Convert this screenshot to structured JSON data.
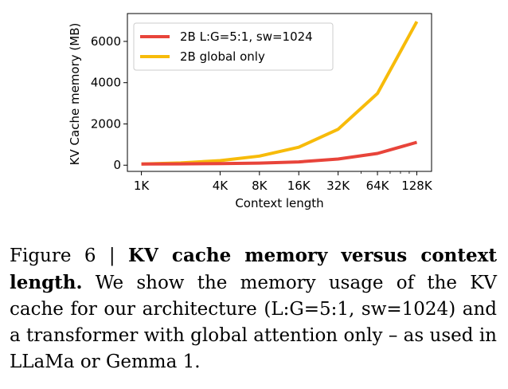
{
  "chart_data": {
    "type": "line",
    "title": "",
    "xlabel": "Context length",
    "ylabel": "KV Cache memory (MB)",
    "x_scale": "log2",
    "x": [
      1024,
      2048,
      4096,
      8192,
      16384,
      32768,
      65536,
      131072
    ],
    "xticks": [
      {
        "value": 1024,
        "label": "1K"
      },
      {
        "value": 4096,
        "label": "4K"
      },
      {
        "value": 8192,
        "label": "8K"
      },
      {
        "value": 16384,
        "label": "16K"
      },
      {
        "value": 32768,
        "label": "32K"
      },
      {
        "value": 65536,
        "label": "64K"
      },
      {
        "value": 131072,
        "label": "128K"
      }
    ],
    "minor_ticks": [
      49152,
      81920,
      98304,
      114688
    ],
    "yticks": [
      0,
      2000,
      4000,
      6000
    ],
    "ylim": [
      -300,
      7350
    ],
    "xlim": [
      800,
      170000
    ],
    "legend_position": "upper-left",
    "series": [
      {
        "name": "2B L:G=5:1, sw=1024",
        "color": "#e8443a",
        "values": [
          55,
          62,
          75,
          100,
          160,
          300,
          570,
          1110
        ]
      },
      {
        "name": "2B global only",
        "color": "#f7bb0a",
        "values": [
          55,
          110,
          220,
          440,
          870,
          1740,
          3480,
          6960
        ]
      }
    ]
  },
  "caption": {
    "label": "Figure 6 | ",
    "title": "KV cache memory versus context length.",
    "body": " We show the memory usage of the KV cache for our architecture (L:G=5:1, sw=1024) and a transformer with global attention only – as used in LLaMa or Gemma 1."
  }
}
